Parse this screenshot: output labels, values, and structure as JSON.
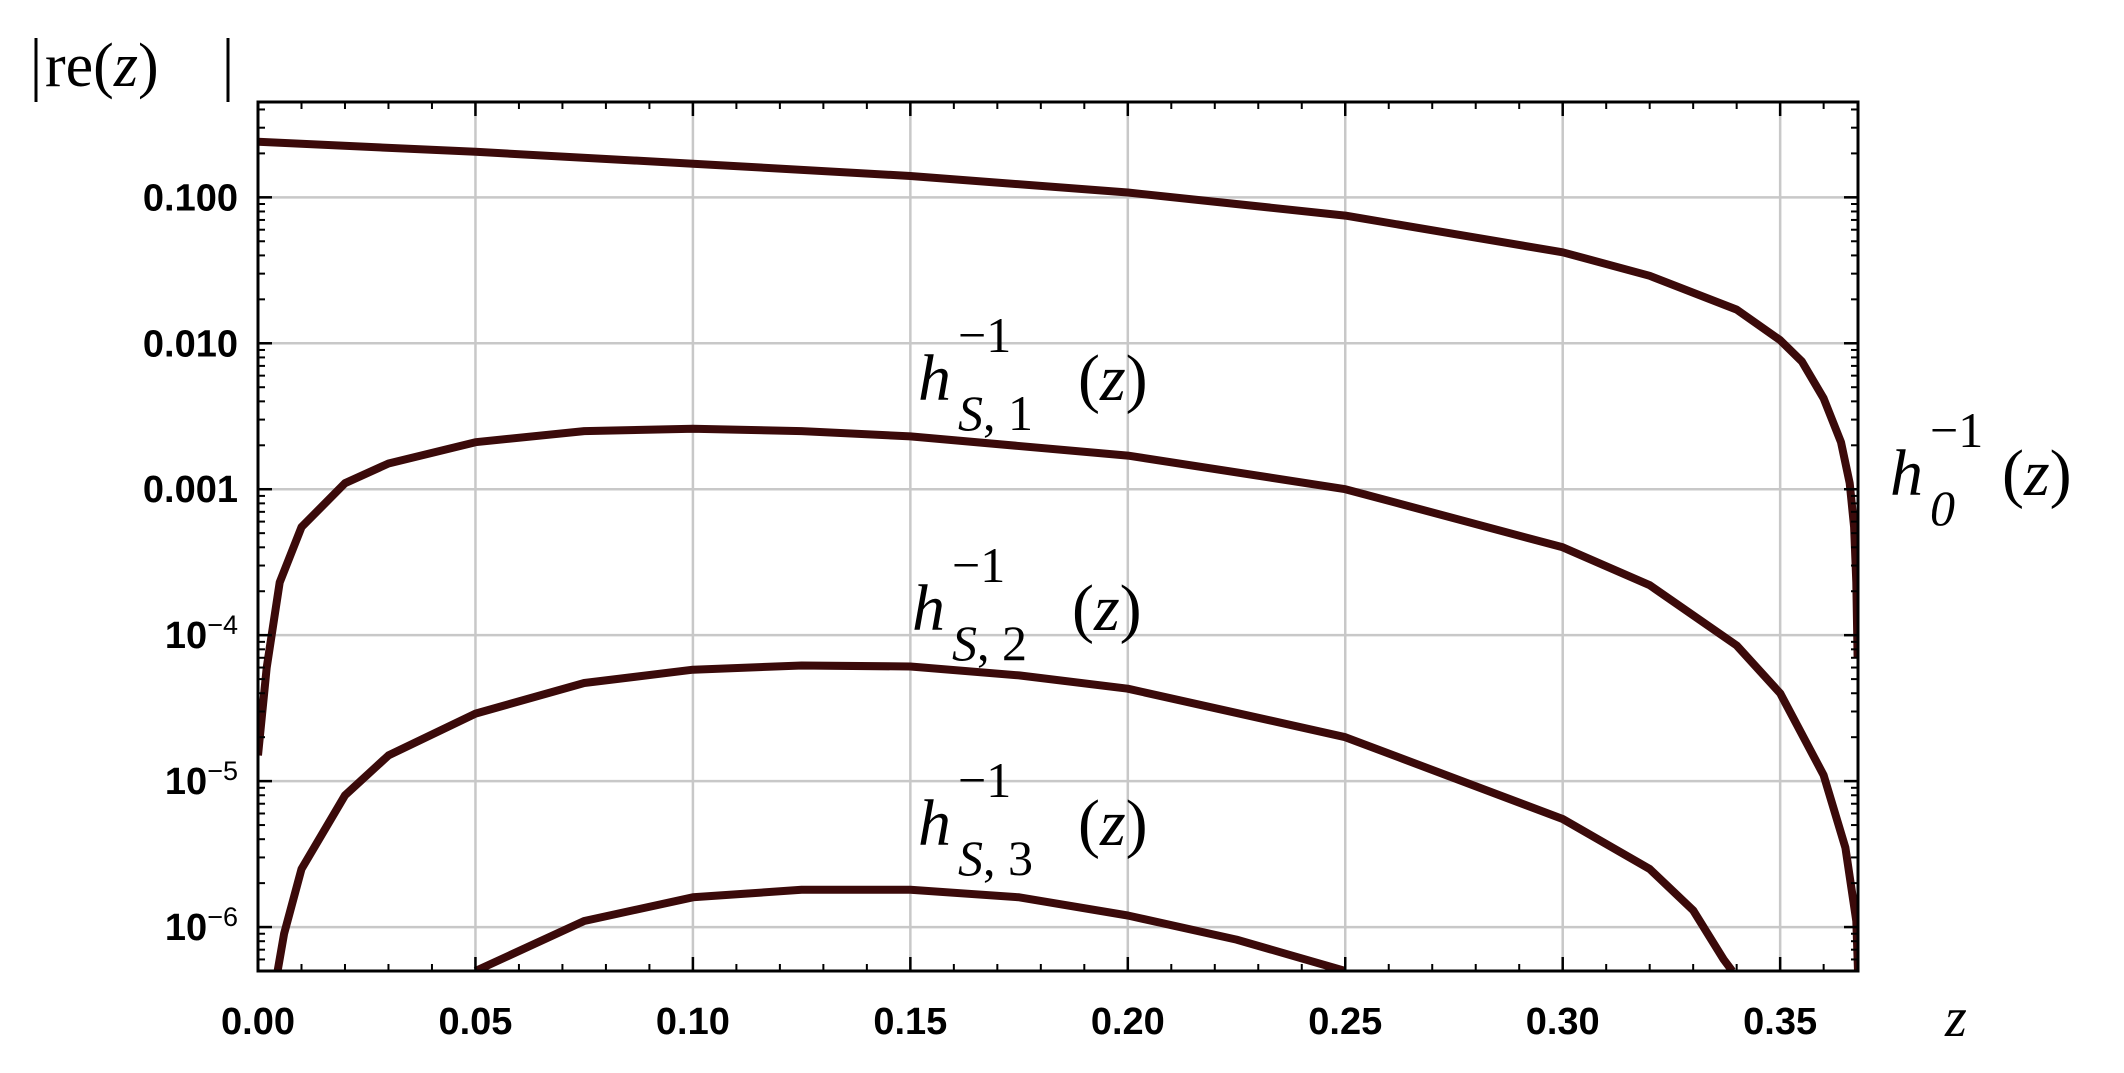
{
  "chart_data": {
    "type": "line",
    "ylabel": "|re(z)|",
    "xlabel": "z",
    "yscale": "log",
    "xlim": [
      0.0,
      0.3679
    ],
    "ylim": [
      5e-07,
      0.45
    ],
    "grid": true,
    "x_ticks": [
      {
        "value": 0.0,
        "label": "0.00"
      },
      {
        "value": 0.05,
        "label": "0.05"
      },
      {
        "value": 0.1,
        "label": "0.10"
      },
      {
        "value": 0.15,
        "label": "0.15"
      },
      {
        "value": 0.2,
        "label": "0.20"
      },
      {
        "value": 0.25,
        "label": "0.25"
      },
      {
        "value": 0.3,
        "label": "0.30"
      },
      {
        "value": 0.35,
        "label": "0.35"
      }
    ],
    "y_ticks": [
      {
        "value": 0.1,
        "label": "0.100"
      },
      {
        "value": 0.01,
        "label": "0.010"
      },
      {
        "value": 0.001,
        "label": "0.001"
      },
      {
        "value": 0.0001,
        "label": "10",
        "exp": "-4"
      },
      {
        "value": 1e-05,
        "label": "10",
        "exp": "-5"
      },
      {
        "value": 1e-06,
        "label": "10",
        "exp": "-6"
      }
    ],
    "line_color": "#3b0a0a",
    "grid_color": "#c8c8c8",
    "series": [
      {
        "name": "h0^{-1}(z)",
        "label_parts": {
          "base": "h",
          "sup": "−1",
          "sub": "0",
          "arg": "(z)"
        },
        "x": [
          0.0,
          0.05,
          0.1,
          0.15,
          0.2,
          0.25,
          0.3,
          0.32,
          0.34,
          0.35,
          0.355,
          0.36,
          0.364,
          0.366,
          0.367,
          0.3675,
          0.3678
        ],
        "y": [
          0.24,
          0.205,
          0.17,
          0.14,
          0.108,
          0.075,
          0.042,
          0.029,
          0.017,
          0.0105,
          0.0075,
          0.0042,
          0.0021,
          0.0011,
          0.00055,
          0.00023,
          7e-05
        ]
      },
      {
        "name": "h_{S,1}^{-1}(z)",
        "label_parts": {
          "base": "h",
          "sup": "−1",
          "sub": "S, 1",
          "arg": "(z)"
        },
        "x": [
          0.0,
          0.002,
          0.005,
          0.01,
          0.02,
          0.03,
          0.05,
          0.075,
          0.1,
          0.125,
          0.15,
          0.2,
          0.25,
          0.3,
          0.32,
          0.34,
          0.35,
          0.36,
          0.365,
          0.3675,
          0.3679
        ],
        "y": [
          1.5e-05,
          6e-05,
          0.00023,
          0.00055,
          0.0011,
          0.0015,
          0.0021,
          0.0025,
          0.0026,
          0.0025,
          0.0023,
          0.0017,
          0.001,
          0.0004,
          0.00022,
          8.5e-05,
          4e-05,
          1.1e-05,
          3.5e-06,
          1.1e-06,
          5e-07
        ]
      },
      {
        "name": "h_{S,2}^{-1}(z)",
        "label_parts": {
          "base": "h",
          "sup": "−1",
          "sub": "S, 2",
          "arg": "(z)"
        },
        "x": [
          0.0045,
          0.006,
          0.01,
          0.02,
          0.03,
          0.05,
          0.075,
          0.1,
          0.125,
          0.15,
          0.175,
          0.2,
          0.25,
          0.3,
          0.32,
          0.33,
          0.337,
          0.339
        ],
        "y": [
          5e-07,
          9e-07,
          2.5e-06,
          8e-06,
          1.5e-05,
          2.9e-05,
          4.7e-05,
          5.8e-05,
          6.2e-05,
          6.1e-05,
          5.3e-05,
          4.3e-05,
          2e-05,
          5.5e-06,
          2.5e-06,
          1.3e-06,
          6e-07,
          5e-07
        ]
      },
      {
        "name": "h_{S,3}^{-1}(z)",
        "label_parts": {
          "base": "h",
          "sup": "−1",
          "sub": "S, 3",
          "arg": "(z)"
        },
        "x": [
          0.05,
          0.075,
          0.1,
          0.125,
          0.15,
          0.175,
          0.2,
          0.225,
          0.25
        ],
        "y": [
          5e-07,
          1.1e-06,
          1.6e-06,
          1.8e-06,
          1.8e-06,
          1.6e-06,
          1.2e-06,
          8.2e-07,
          5e-07
        ]
      }
    ]
  }
}
